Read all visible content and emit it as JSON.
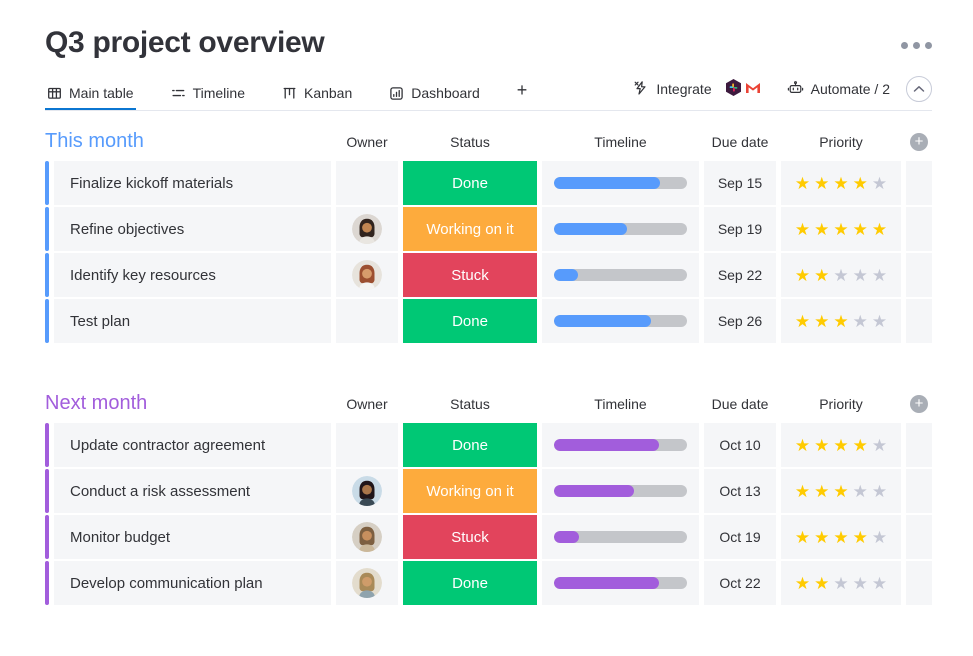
{
  "page": {
    "title": "Q3 project overview"
  },
  "tabs": [
    {
      "label": "Main table",
      "active": true
    },
    {
      "label": "Timeline",
      "active": false
    },
    {
      "label": "Kanban",
      "active": false
    },
    {
      "label": "Dashboard",
      "active": false
    }
  ],
  "tab_add_label": "+",
  "actions": {
    "integrate_label": "Integrate",
    "automate_label": "Automate / 2"
  },
  "columns": [
    "Owner",
    "Status",
    "Timeline",
    "Due date",
    "Priority"
  ],
  "column_add_label": "+",
  "status_colors": {
    "Done": "#00c875",
    "Working on it": "#fdab3d",
    "Stuck": "#e2445c"
  },
  "priority_max": 5,
  "star_colors": {
    "on": "#ffcb00",
    "off": "#c4c7d4"
  },
  "timeline_track_color": "#c4c6ca",
  "avatars": {
    "woman-dark-hair": {
      "bg": "#dcd7d2",
      "hair": "#31241e",
      "skin": "#c08552",
      "shirt": "#e9e6e1"
    },
    "woman-auburn-hair": {
      "bg": "#e7e3dc",
      "hair": "#9c4f30",
      "skin": "#d79c6c",
      "shirt": "#f5f4f2"
    },
    "man-turban-beard": {
      "bg": "#c9dbe7",
      "hair": "#20161a",
      "skin": "#a9764a",
      "shirt": "#3a4a55"
    },
    "woman-glasses": {
      "bg": "#d6cfc4",
      "hair": "#7d5f40",
      "skin": "#c78f5e",
      "shirt": "#cbb89a"
    },
    "man-beard-glasses": {
      "bg": "#e3dccd",
      "hair": "#a98a58",
      "skin": "#cf9c6a",
      "shirt": "#8fa3ad"
    }
  },
  "groups": [
    {
      "title": "This month",
      "color": "#579bfc",
      "rows": [
        {
          "name": "Finalize kickoff materials",
          "owner": null,
          "status": "Done",
          "timeline_pct": 80,
          "due": "Sep 15",
          "priority": 4
        },
        {
          "name": "Refine objectives",
          "owner": "woman-dark-hair",
          "status": "Working on it",
          "timeline_pct": 55,
          "due": "Sep 19",
          "priority": 5
        },
        {
          "name": "Identify key resources",
          "owner": "woman-auburn-hair",
          "status": "Stuck",
          "timeline_pct": 18,
          "due": "Sep 22",
          "priority": 2
        },
        {
          "name": "Test plan",
          "owner": null,
          "status": "Done",
          "timeline_pct": 73,
          "due": "Sep 26",
          "priority": 3
        }
      ]
    },
    {
      "title": "Next month",
      "color": "#a25ddc",
      "rows": [
        {
          "name": "Update contractor agreement",
          "owner": null,
          "status": "Done",
          "timeline_pct": 79,
          "due": "Oct 10",
          "priority": 4
        },
        {
          "name": "Conduct a risk assessment",
          "owner": "man-turban-beard",
          "status": "Working on it",
          "timeline_pct": 60,
          "due": "Oct 13",
          "priority": 3
        },
        {
          "name": "Monitor budget",
          "owner": "woman-glasses",
          "status": "Stuck",
          "timeline_pct": 19,
          "due": "Oct 19",
          "priority": 4
        },
        {
          "name": "Develop communication plan",
          "owner": "man-beard-glasses",
          "status": "Done",
          "timeline_pct": 79,
          "due": "Oct 22",
          "priority": 2
        }
      ]
    }
  ]
}
